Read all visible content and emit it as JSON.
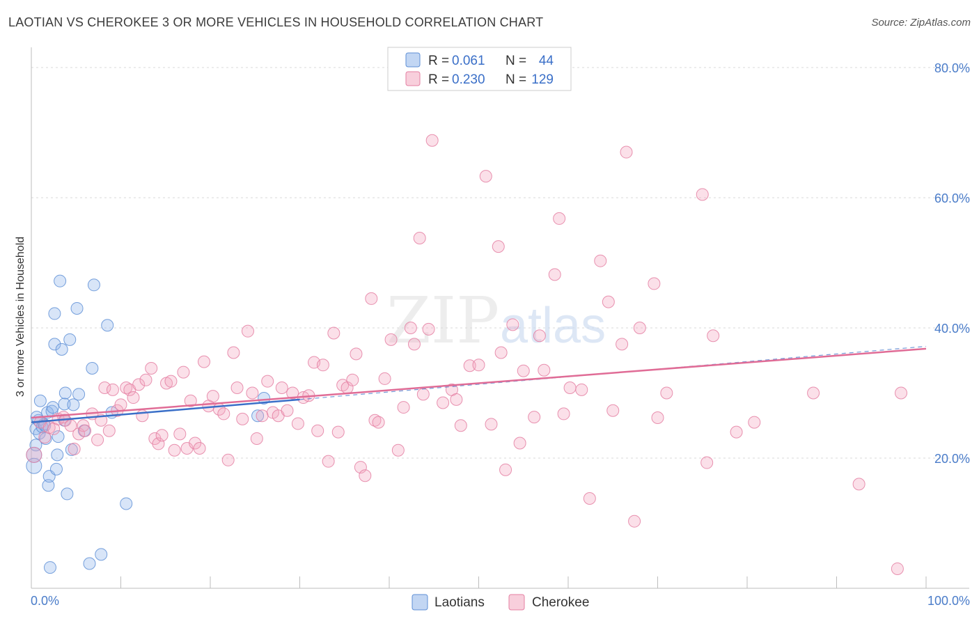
{
  "title": "LAOTIAN VS CHEROKEE 3 OR MORE VEHICLES IN HOUSEHOLD CORRELATION CHART",
  "source": "Source: ZipAtlas.com",
  "watermark": {
    "zip": "ZIP",
    "atlas": "atlas"
  },
  "legend": {
    "r_label": "R =",
    "n_label": "N =",
    "rows": [
      {
        "r": "0.061",
        "n": "44",
        "color": "#8fb5ea"
      },
      {
        "r": "0.230",
        "n": "129",
        "color": "#f3a7c0"
      }
    ]
  },
  "bottom_legend": [
    "Laotians",
    "Cherokee"
  ],
  "chart_data": {
    "type": "scatter",
    "xlabel": "",
    "ylabel": "3 or more Vehicles in Household",
    "xlim": [
      0,
      100
    ],
    "ylim": [
      0,
      80
    ],
    "x_ticks": [
      "0.0%",
      "100.0%"
    ],
    "y_ticks": [
      {
        "value": 80,
        "label": "80.0%"
      },
      {
        "value": 60,
        "label": "60.0%"
      },
      {
        "value": 40,
        "label": "40.0%"
      },
      {
        "value": 20,
        "label": "20.0%"
      }
    ],
    "series": [
      {
        "name": "Laotians",
        "color": "#8fb5ea",
        "stroke": "#5e8fd6",
        "trend": {
          "x0": 0,
          "y0": 25.5,
          "x1": 30,
          "y1": 29.0,
          "color": "#3a6fc8",
          "dash_extend_to": 100
        },
        "points": [
          [
            0.3,
            20.5
          ],
          [
            0.3,
            18.8
          ],
          [
            0.5,
            22.0
          ],
          [
            0.5,
            24.5
          ],
          [
            0.8,
            25.8
          ],
          [
            0.9,
            23.8
          ],
          [
            1.0,
            28.8
          ],
          [
            1.2,
            24.8
          ],
          [
            1.4,
            25.2
          ],
          [
            1.6,
            23.0
          ],
          [
            1.8,
            27.0
          ],
          [
            1.9,
            15.8
          ],
          [
            2.0,
            17.2
          ],
          [
            2.3,
            27.2
          ],
          [
            2.4,
            27.8
          ],
          [
            2.6,
            42.2
          ],
          [
            2.6,
            37.5
          ],
          [
            2.8,
            18.3
          ],
          [
            2.9,
            20.5
          ],
          [
            3.0,
            23.3
          ],
          [
            3.2,
            47.2
          ],
          [
            3.4,
            36.7
          ],
          [
            3.7,
            25.8
          ],
          [
            3.7,
            28.3
          ],
          [
            3.8,
            30.0
          ],
          [
            4.0,
            14.5
          ],
          [
            4.3,
            38.2
          ],
          [
            4.5,
            21.3
          ],
          [
            4.7,
            28.2
          ],
          [
            5.1,
            43.0
          ],
          [
            5.3,
            29.8
          ],
          [
            5.9,
            24.2
          ],
          [
            6.5,
            3.8
          ],
          [
            6.8,
            33.8
          ],
          [
            7.0,
            46.6
          ],
          [
            7.8,
            5.2
          ],
          [
            8.5,
            40.4
          ],
          [
            9.0,
            27.0
          ],
          [
            10.6,
            13.0
          ],
          [
            2.1,
            3.2
          ],
          [
            25.3,
            26.5
          ],
          [
            26.0,
            29.2
          ],
          [
            0.6,
            26.3
          ],
          [
            1.5,
            25.0
          ]
        ]
      },
      {
        "name": "Cherokee",
        "color": "#f3a7c0",
        "stroke": "#e47fa2",
        "trend": {
          "x0": 0,
          "y0": 26.2,
          "x1": 100,
          "y1": 36.8,
          "color": "#e06c96"
        },
        "points": [
          [
            0.3,
            20.5
          ],
          [
            1.0,
            25.5
          ],
          [
            1.5,
            23.2
          ],
          [
            2.0,
            24.7
          ],
          [
            2.5,
            24.5
          ],
          [
            3.0,
            26.0
          ],
          [
            3.6,
            26.3
          ],
          [
            3.8,
            25.8
          ],
          [
            4.4,
            25.0
          ],
          [
            4.8,
            21.4
          ],
          [
            5.3,
            23.7
          ],
          [
            5.8,
            25.0
          ],
          [
            6.0,
            24.2
          ],
          [
            6.8,
            26.8
          ],
          [
            7.4,
            22.8
          ],
          [
            7.8,
            25.8
          ],
          [
            8.2,
            30.8
          ],
          [
            8.7,
            24.2
          ],
          [
            9.1,
            30.5
          ],
          [
            9.6,
            27.3
          ],
          [
            10.0,
            28.2
          ],
          [
            10.6,
            30.8
          ],
          [
            11.0,
            30.5
          ],
          [
            11.4,
            29.3
          ],
          [
            12.0,
            31.3
          ],
          [
            12.4,
            26.5
          ],
          [
            12.8,
            32.0
          ],
          [
            13.4,
            33.8
          ],
          [
            13.8,
            23.0
          ],
          [
            14.2,
            22.2
          ],
          [
            14.6,
            23.5
          ],
          [
            15.1,
            31.5
          ],
          [
            15.6,
            31.8
          ],
          [
            16.0,
            21.2
          ],
          [
            16.6,
            23.7
          ],
          [
            17.0,
            33.2
          ],
          [
            17.4,
            21.5
          ],
          [
            17.8,
            28.8
          ],
          [
            18.3,
            22.3
          ],
          [
            18.8,
            21.5
          ],
          [
            19.3,
            34.8
          ],
          [
            19.8,
            28.0
          ],
          [
            20.3,
            29.5
          ],
          [
            21.0,
            27.5
          ],
          [
            21.5,
            26.8
          ],
          [
            22.0,
            19.7
          ],
          [
            22.6,
            36.2
          ],
          [
            23.0,
            30.8
          ],
          [
            23.6,
            26.0
          ],
          [
            24.2,
            39.5
          ],
          [
            24.7,
            30.0
          ],
          [
            25.2,
            23.0
          ],
          [
            25.8,
            26.5
          ],
          [
            26.4,
            31.8
          ],
          [
            27.0,
            27.0
          ],
          [
            27.6,
            26.5
          ],
          [
            28.0,
            30.8
          ],
          [
            28.6,
            27.3
          ],
          [
            29.2,
            30.0
          ],
          [
            29.8,
            25.3
          ],
          [
            30.4,
            29.3
          ],
          [
            31.0,
            29.6
          ],
          [
            31.6,
            34.7
          ],
          [
            32.0,
            24.2
          ],
          [
            32.6,
            34.3
          ],
          [
            33.2,
            19.5
          ],
          [
            33.8,
            39.2
          ],
          [
            34.3,
            24.0
          ],
          [
            34.8,
            31.2
          ],
          [
            35.3,
            30.8
          ],
          [
            35.9,
            32.0
          ],
          [
            36.3,
            36.0
          ],
          [
            36.8,
            18.6
          ],
          [
            37.3,
            17.3
          ],
          [
            38.0,
            44.5
          ],
          [
            38.4,
            25.8
          ],
          [
            38.8,
            25.5
          ],
          [
            39.5,
            32.2
          ],
          [
            40.2,
            38.2
          ],
          [
            41.0,
            21.2
          ],
          [
            41.6,
            27.8
          ],
          [
            42.4,
            40.0
          ],
          [
            42.8,
            37.5
          ],
          [
            43.4,
            53.8
          ],
          [
            43.8,
            29.8
          ],
          [
            44.4,
            39.8
          ],
          [
            44.8,
            68.8
          ],
          [
            46.0,
            28.5
          ],
          [
            47.0,
            30.5
          ],
          [
            47.5,
            29.0
          ],
          [
            48.0,
            25.0
          ],
          [
            49.0,
            34.2
          ],
          [
            50.0,
            34.3
          ],
          [
            50.8,
            63.3
          ],
          [
            51.4,
            25.2
          ],
          [
            52.2,
            52.5
          ],
          [
            52.5,
            36.2
          ],
          [
            53.0,
            18.2
          ],
          [
            53.8,
            40.5
          ],
          [
            54.6,
            22.3
          ],
          [
            55.0,
            33.4
          ],
          [
            56.2,
            26.3
          ],
          [
            56.8,
            38.8
          ],
          [
            57.3,
            33.5
          ],
          [
            58.5,
            48.2
          ],
          [
            59.0,
            56.8
          ],
          [
            59.5,
            26.8
          ],
          [
            60.2,
            30.8
          ],
          [
            61.5,
            30.5
          ],
          [
            62.4,
            13.8
          ],
          [
            63.6,
            50.3
          ],
          [
            64.5,
            44.0
          ],
          [
            65.0,
            27.3
          ],
          [
            66.0,
            37.5
          ],
          [
            66.5,
            67.0
          ],
          [
            67.4,
            10.3
          ],
          [
            68.0,
            40.0
          ],
          [
            69.6,
            46.8
          ],
          [
            70.0,
            26.2
          ],
          [
            71.0,
            30.0
          ],
          [
            75.0,
            60.5
          ],
          [
            75.5,
            19.3
          ],
          [
            76.2,
            38.8
          ],
          [
            78.8,
            24.0
          ],
          [
            80.8,
            25.5
          ],
          [
            87.4,
            30.0
          ],
          [
            92.5,
            16.0
          ],
          [
            96.8,
            3.0
          ],
          [
            97.2,
            30.0
          ]
        ]
      }
    ]
  }
}
